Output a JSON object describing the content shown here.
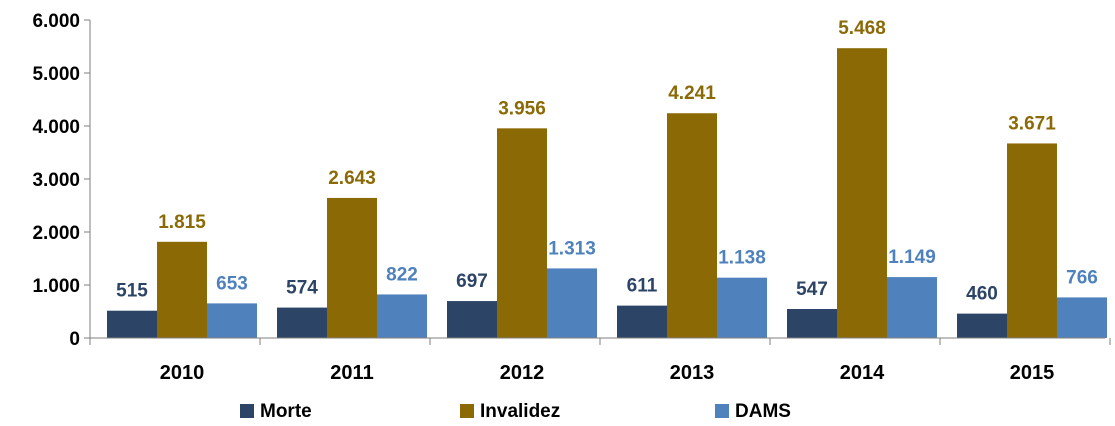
{
  "chart_data": {
    "type": "bar",
    "categories": [
      "2010",
      "2011",
      "2012",
      "2013",
      "2014",
      "2015"
    ],
    "series": [
      {
        "name": "Morte",
        "color": "#2C4466",
        "label_color": "#2C4466",
        "values": [
          515,
          574,
          697,
          611,
          547,
          460
        ],
        "labels": [
          "515",
          "574",
          "697",
          "611",
          "547",
          "460"
        ]
      },
      {
        "name": "Invalidez",
        "color": "#8B6A06",
        "label_color": "#8B6A06",
        "values": [
          1815,
          2643,
          3956,
          4241,
          5468,
          3671
        ],
        "labels": [
          "1.815",
          "2.643",
          "3.956",
          "4.241",
          "5.468",
          "3.671"
        ]
      },
      {
        "name": "DAMS",
        "color": "#4F81BD",
        "label_color": "#4F81BD",
        "values": [
          653,
          822,
          1313,
          1138,
          1149,
          766
        ],
        "labels": [
          "653",
          "822",
          "1.313",
          "1.138",
          "1.149",
          "766"
        ]
      }
    ],
    "y_ticks": [
      {
        "value": 0,
        "label": "0"
      },
      {
        "value": 1000,
        "label": "1.000"
      },
      {
        "value": 2000,
        "label": "2.000"
      },
      {
        "value": 3000,
        "label": "3.000"
      },
      {
        "value": 4000,
        "label": "4.000"
      },
      {
        "value": 5000,
        "label": "5.000"
      },
      {
        "value": 6000,
        "label": "6.000"
      }
    ],
    "ylim": [
      0,
      6000
    ],
    "title": "",
    "xlabel": "",
    "ylabel": "",
    "grid": false,
    "legend": "bottom"
  }
}
